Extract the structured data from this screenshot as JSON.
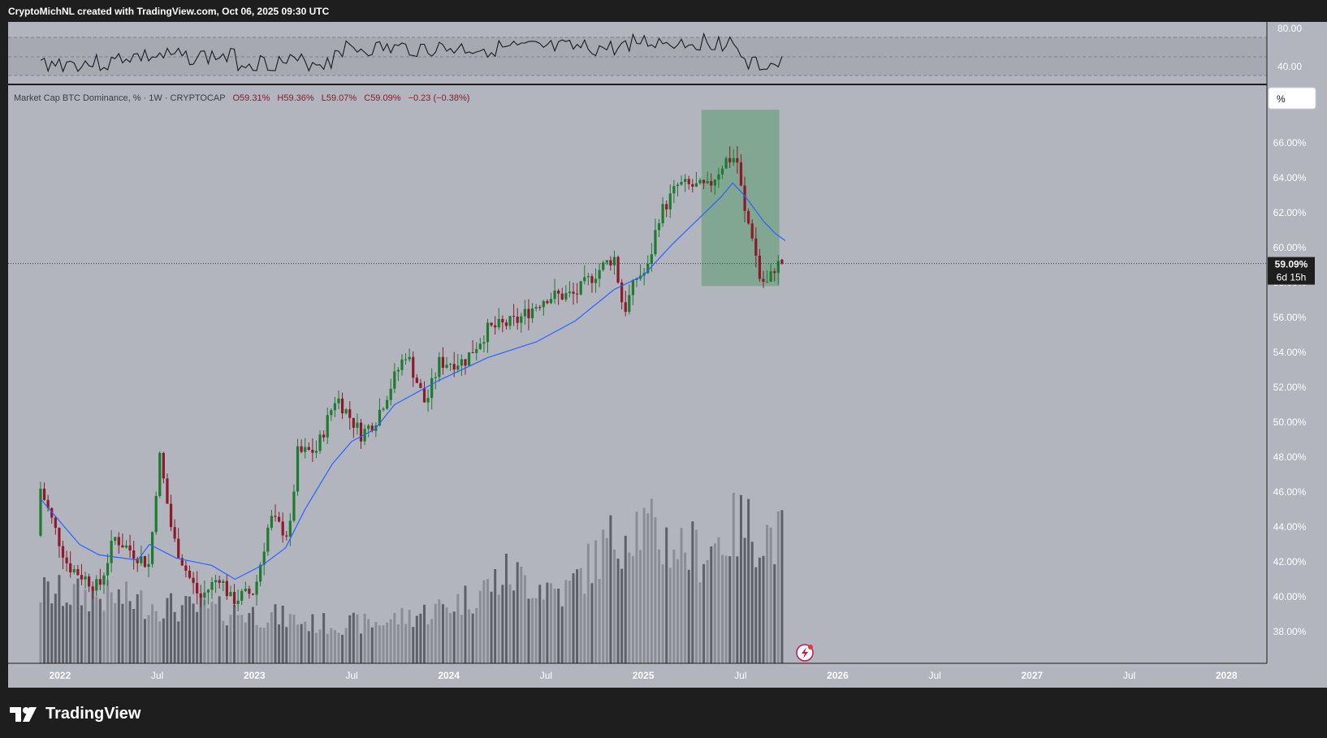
{
  "header": {
    "caption": "CryptoMichNL created with TradingView.com, Oct 06, 2025 09:30 UTC"
  },
  "brand": {
    "name": "TradingView"
  },
  "colors": {
    "bg_outer": "#1e1e1e",
    "pane_bg": "#b2b5be",
    "up": "#1e7a2e",
    "down": "#8b1a2a",
    "ma_line": "#2962ff",
    "highlight_box": "#5a9a6e",
    "volume_light": "#8a8d96",
    "volume_dark": "#5d6068",
    "axis_text": "#ffffff"
  },
  "indicator": {
    "ticks": [
      "80.00",
      "40.00"
    ]
  },
  "legend": {
    "symbol": "Market Cap BTC Dominance, % · 1W · CRYPTOCAP",
    "o": "O59.31%",
    "h": "H59.36%",
    "l": "L59.07%",
    "c": "C59.09%",
    "chg": "−0.23 (−0.38%)"
  },
  "scale_button": "%",
  "price_label": {
    "value": "59.09%",
    "countdown": "6d 15h"
  },
  "chart_data": {
    "type": "candlestick",
    "title": "Market Cap BTC Dominance, % · 1W · CRYPTOCAP",
    "interval": "1W",
    "y_ticks": [
      "66.00%",
      "64.00%",
      "62.00%",
      "60.00%",
      "58.00%",
      "56.00%",
      "54.00%",
      "52.00%",
      "50.00%",
      "48.00%",
      "46.00%",
      "44.00%",
      "42.00%",
      "40.00%",
      "38.00%"
    ],
    "x_ticks": [
      "2022",
      "Jul",
      "2023",
      "Jul",
      "2024",
      "Jul",
      "2025",
      "Jul",
      "2026",
      "Jul",
      "2027",
      "Jul",
      "2028"
    ],
    "ylim": [
      36.5,
      68.5
    ],
    "last_close": 59.09,
    "anchors": [
      [
        2021.9,
        43.5,
        46.2
      ],
      [
        2022.04,
        45.5,
        41.8
      ],
      [
        2022.2,
        41.5,
        40.5
      ],
      [
        2022.28,
        40.0,
        43.4
      ],
      [
        2022.46,
        41.2,
        41.8
      ],
      [
        2022.51,
        45.8,
        48.2
      ],
      [
        2022.58,
        44.0,
        43.4
      ],
      [
        2022.66,
        42.5,
        41.2
      ],
      [
        2022.72,
        40.8,
        39.9
      ],
      [
        2022.82,
        40.5,
        41.2
      ],
      [
        2022.88,
        40.6,
        39.8
      ],
      [
        2023.0,
        40.8,
        40.3
      ],
      [
        2023.08,
        43.0,
        44.5
      ],
      [
        2023.18,
        44.0,
        43.5
      ],
      [
        2023.22,
        47.8,
        48.2
      ],
      [
        2023.32,
        47.3,
        48.4
      ],
      [
        2023.42,
        49.9,
        51.5
      ],
      [
        2023.55,
        49.5,
        49.3
      ],
      [
        2023.62,
        49.8,
        50.1
      ],
      [
        2023.78,
        53.0,
        54.0
      ],
      [
        2023.88,
        52.8,
        51.0
      ],
      [
        2023.95,
        52.1,
        53.4
      ],
      [
        2024.08,
        52.8,
        53.5
      ],
      [
        2024.2,
        54.0,
        55.3
      ],
      [
        2024.35,
        54.5,
        55.8
      ],
      [
        2024.5,
        56.8,
        57.2
      ],
      [
        2024.65,
        56.6,
        57.3
      ],
      [
        2024.75,
        57.5,
        58.5
      ],
      [
        2024.85,
        60.0,
        59.5
      ],
      [
        2024.9,
        57.5,
        56.3
      ],
      [
        2024.97,
        56.2,
        58.4
      ],
      [
        2025.02,
        58.0,
        58.6
      ],
      [
        2025.08,
        61.0,
        61.8
      ],
      [
        2025.18,
        62.5,
        63.6
      ],
      [
        2025.33,
        64.0,
        63.4
      ],
      [
        2025.42,
        64.2,
        65.0
      ],
      [
        2025.48,
        65.4,
        65.2
      ],
      [
        2025.52,
        64.0,
        62.0
      ],
      [
        2025.56,
        60.2,
        60.8
      ],
      [
        2025.6,
        59.0,
        58.2
      ],
      [
        2025.64,
        57.6,
        57.9
      ],
      [
        2025.68,
        58.4,
        59.0
      ],
      [
        2025.73,
        59.31,
        59.09
      ]
    ],
    "moving_average": [
      [
        2021.9,
        45.6
      ],
      [
        2022.1,
        43.0
      ],
      [
        2022.2,
        42.4
      ],
      [
        2022.4,
        42.1
      ],
      [
        2022.46,
        43.0
      ],
      [
        2022.6,
        42.2
      ],
      [
        2022.78,
        41.8
      ],
      [
        2022.9,
        41.0
      ],
      [
        2023.04,
        41.8
      ],
      [
        2023.16,
        42.8
      ],
      [
        2023.26,
        45.0
      ],
      [
        2023.4,
        47.6
      ],
      [
        2023.5,
        48.9
      ],
      [
        2023.62,
        49.6
      ],
      [
        2023.72,
        51.0
      ],
      [
        2023.95,
        52.4
      ],
      [
        2024.2,
        53.7
      ],
      [
        2024.45,
        54.6
      ],
      [
        2024.65,
        55.8
      ],
      [
        2024.85,
        57.6
      ],
      [
        2025.0,
        58.4
      ],
      [
        2025.15,
        60.2
      ],
      [
        2025.28,
        61.6
      ],
      [
        2025.4,
        62.9
      ],
      [
        2025.46,
        63.7
      ],
      [
        2025.52,
        63.0
      ],
      [
        2025.62,
        61.5
      ],
      [
        2025.68,
        60.8
      ],
      [
        2025.73,
        60.4
      ]
    ],
    "highlight": {
      "x_from": 2025.3,
      "x_to": 2025.7,
      "y_from": 57.8,
      "y_to": 67.9
    },
    "volume_profile": [
      [
        2021.9,
        0.36
      ],
      [
        2022.3,
        0.33
      ],
      [
        2022.6,
        0.28
      ],
      [
        2022.9,
        0.26
      ],
      [
        2023.1,
        0.24
      ],
      [
        2023.3,
        0.2
      ],
      [
        2023.6,
        0.2
      ],
      [
        2023.9,
        0.26
      ],
      [
        2024.1,
        0.33
      ],
      [
        2024.3,
        0.45
      ],
      [
        2024.6,
        0.36
      ],
      [
        2024.8,
        0.58
      ],
      [
        2024.95,
        0.72
      ],
      [
        2025.1,
        0.62
      ],
      [
        2025.3,
        0.56
      ],
      [
        2025.5,
        0.7
      ],
      [
        2025.73,
        0.62
      ]
    ]
  }
}
